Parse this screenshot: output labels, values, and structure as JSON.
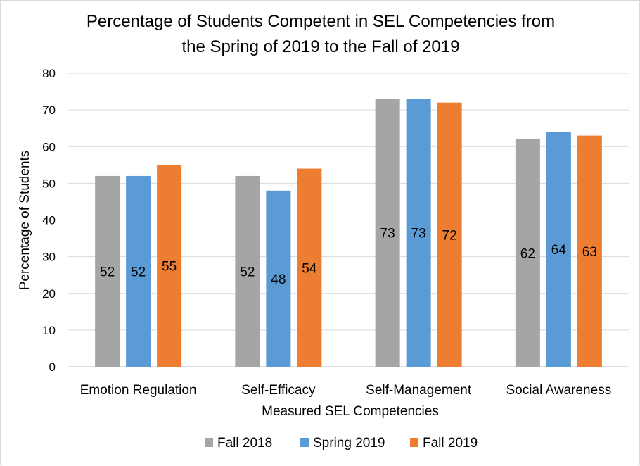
{
  "chart_data": {
    "type": "bar",
    "title": "Percentage of Students Competent in SEL Competencies from the Spring of 2019 to the Fall of 2019",
    "title_lines": [
      "Percentage of Students Competent in SEL Competencies from",
      "the Spring of 2019 to the Fall of 2019"
    ],
    "xlabel": "Measured SEL Competencies",
    "ylabel": "Percentage of Students",
    "ylim": [
      0,
      80
    ],
    "yticks": [
      0,
      10,
      20,
      30,
      40,
      50,
      60,
      70,
      80
    ],
    "grid": true,
    "legend_position": "bottom",
    "data_labels": true,
    "categories": [
      "Emotion Regulation",
      "Self-Efficacy",
      "Self-Management",
      "Social Awareness"
    ],
    "series": [
      {
        "name": "Fall 2018",
        "color": "#a5a5a5",
        "values": [
          52,
          52,
          73,
          62
        ]
      },
      {
        "name": "Spring 2019",
        "color": "#5b9bd5",
        "values": [
          52,
          48,
          73,
          64
        ]
      },
      {
        "name": "Fall 2019",
        "color": "#ed7d31",
        "values": [
          55,
          54,
          72,
          63
        ]
      }
    ]
  }
}
